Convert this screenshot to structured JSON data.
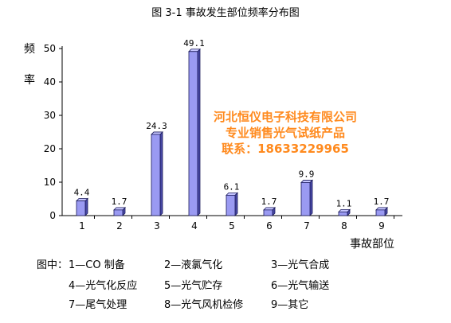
{
  "chart_data": {
    "type": "bar",
    "title": "图 3-1   事故发生部位频率分布图",
    "ylabel_chars": [
      "频",
      "率"
    ],
    "xlabel": "事故部位",
    "categories": [
      "1",
      "2",
      "3",
      "4",
      "5",
      "6",
      "7",
      "8",
      "9"
    ],
    "values": [
      4.4,
      1.7,
      24.3,
      49.1,
      6.1,
      1.7,
      9.9,
      1.1,
      1.7
    ],
    "data_labels": [
      "4.4",
      "1.7",
      "24.3",
      "49.1",
      "6.1",
      "1.7",
      "9.9",
      "1.1",
      "1.7"
    ],
    "ylim": [
      0,
      50
    ],
    "yticks": [
      "0",
      "10",
      "20",
      "30",
      "40",
      "50"
    ],
    "grid": false,
    "bar_color": "#9a9af2",
    "bar_edge_color": "#1a1a5a"
  },
  "watermark": {
    "line1": "河北恒仪电子科技有限公司",
    "line2": "专业销售光气试纸产品",
    "line3": "联系：18633229965",
    "color": "#ff8a1e"
  },
  "legend": {
    "prefix": "图中：",
    "items": [
      "1—CO 制备",
      "2—液氯气化",
      "3—光气合成",
      "4—光气化反应",
      "5—光气贮存",
      "6—光气输送",
      "7—尾气处理",
      "8—光气风机检修",
      "9—其它"
    ]
  }
}
